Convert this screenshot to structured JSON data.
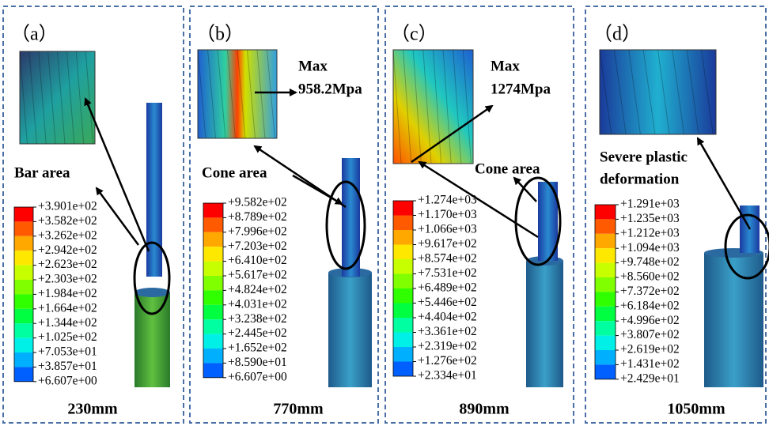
{
  "panels": [
    {
      "label": "（a）",
      "notes": [
        "Bar area"
      ],
      "caption": "230mm",
      "legend": [
        "+3.901e+02",
        "+3.582e+02",
        "+3.262e+02",
        "+2.942e+02",
        "+2.623e+02",
        "+2.303e+02",
        "+1.984e+02",
        "+1.664e+02",
        "+1.344e+02",
        "+1.025e+02",
        "+7.053e+01",
        "+3.857e+01",
        "+6.607e+00"
      ]
    },
    {
      "label": "（b）",
      "notes": [
        "Max",
        "958.2Mpa",
        "Cone area"
      ],
      "caption": "770mm",
      "legend": [
        "+9.582e+02",
        "+8.789e+02",
        "+7.996e+02",
        "+7.203e+02",
        "+6.410e+02",
        "+5.617e+02",
        "+4.824e+02",
        "+4.031e+02",
        "+3.238e+02",
        "+2.445e+02",
        "+1.652e+02",
        "+8.590e+01",
        "+6.607e+00"
      ]
    },
    {
      "label": "（c）",
      "notes": [
        "Max",
        "1274Mpa",
        "Cone area"
      ],
      "caption": "890mm",
      "legend": [
        "+1.274e+03",
        "+1.170e+03",
        "+1.066e+03",
        "+9.617e+02",
        "+8.574e+02",
        "+7.531e+02",
        "+6.489e+02",
        "+5.446e+02",
        "+4.404e+02",
        "+3.361e+02",
        "+2.319e+02",
        "+1.276e+02",
        "+2.334e+01"
      ]
    },
    {
      "label": "（d）",
      "notes": [
        "Severe plastic",
        "deformation"
      ],
      "caption": "1050mm",
      "legend": [
        "+1.291e+03",
        "+1.235e+03",
        "+1.212e+03",
        "+1.094e+03",
        "+9.748e+02",
        "+8.560e+02",
        "+7.372e+02",
        "+6.184e+02",
        "+4.996e+02",
        "+3.807e+02",
        "+2.619e+02",
        "+1.431e+02",
        "+2.429e+01"
      ]
    }
  ]
}
